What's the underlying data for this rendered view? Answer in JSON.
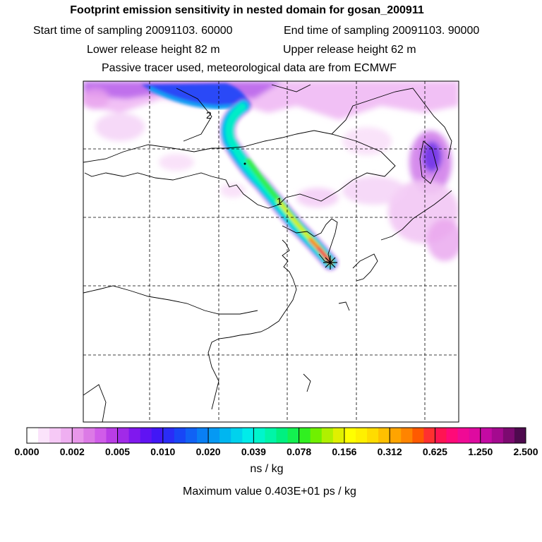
{
  "header": {
    "title": "Footprint emission sensitivity in nested domain for gosan_200911",
    "start": "Start time of sampling 20091103. 60000",
    "end": "End time of sampling 20091103. 90000",
    "lower": "Lower release height   82 m",
    "upper": "Upper release height   62 m",
    "tracer": "Passive tracer used, meteorological data are from ECMWF"
  },
  "colorbar": {
    "tick_labels": [
      "0.000",
      "0.002",
      "0.005",
      "0.010",
      "0.020",
      "0.039",
      "0.078",
      "0.156",
      "0.312",
      "0.625",
      "1.250",
      "2.500"
    ],
    "colors": [
      "#ffffff",
      "#fbe3fb",
      "#f6c9f6",
      "#efaff1",
      "#e897ea",
      "#dc7ae6",
      "#d05ce9",
      "#b93de6",
      "#a12ae8",
      "#8018ee",
      "#6013f3",
      "#4117f6",
      "#2a2cf7",
      "#1846f6",
      "#1062f5",
      "#097ff4",
      "#0599f3",
      "#00b6f0",
      "#00d2ed",
      "#00ecea",
      "#00f5cc",
      "#00f5a8",
      "#00f080",
      "#13f050",
      "#30f020",
      "#70f000",
      "#b0f000",
      "#e0f000",
      "#ffff00",
      "#fff000",
      "#ffdc00",
      "#ffc000",
      "#ffa400",
      "#ff8400",
      "#ff5a00",
      "#ff3030",
      "#ff1452",
      "#ff0a78",
      "#f00a95",
      "#de0aa0",
      "#c40aa3",
      "#a40a8f",
      "#7c0a70",
      "#4e0a4e"
    ],
    "unit": "ns / kg",
    "max_value": "Maximum value  0.403E+01 ps / kg"
  },
  "map": {
    "labels": [
      "2",
      "1"
    ]
  },
  "chart_data": {
    "type": "heatmap",
    "title": "Footprint emission sensitivity in nested domain for gosan_200911",
    "color_scale_levels": [
      0.0,
      0.002,
      0.005,
      0.01,
      0.02,
      0.039,
      0.078,
      0.156,
      0.312,
      0.625,
      1.25,
      2.5
    ],
    "color_scale_unit": "ns / kg",
    "max_value": "0.403E+01 ps / kg",
    "receptor": "gosan",
    "sampling_start": "20091103. 60000",
    "sampling_end": "20091103. 90000",
    "lower_release_height_m": 82,
    "upper_release_height_m": 62,
    "transport_days_labels": [
      "1",
      "2"
    ]
  }
}
